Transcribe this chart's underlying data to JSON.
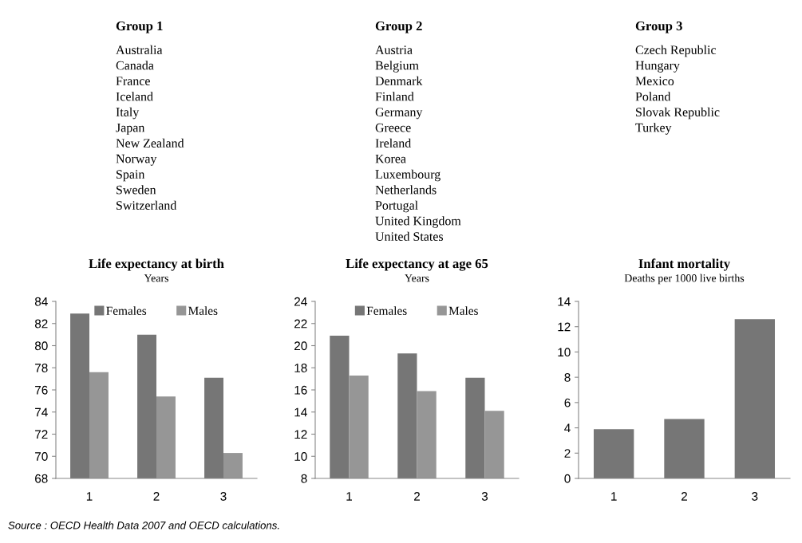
{
  "chart_data": [
    {
      "type": "other",
      "title": "Group 1",
      "annotations": [
        "Australia",
        "Canada",
        "France",
        "Iceland",
        "Italy",
        "Japan",
        "New Zealand",
        "Norway",
        "Spain",
        "Sweden",
        "Switzerland"
      ]
    },
    {
      "type": "other",
      "title": "Group 2",
      "annotations": [
        "Austria",
        "Belgium",
        "Denmark",
        "Finland",
        "Germany",
        "Greece",
        "Ireland",
        "Korea",
        "Luxembourg",
        "Netherlands",
        "Portugal",
        "United Kingdom",
        "United States"
      ]
    },
    {
      "type": "other",
      "title": "Group 3",
      "annotations": [
        "Czech Republic",
        "Hungary",
        "Mexico",
        "Poland",
        "Slovak Republic",
        "Turkey"
      ]
    },
    {
      "type": "bar",
      "title": "Life expectancy at birth",
      "subtitle": "Years",
      "categories": [
        "1",
        "2",
        "3"
      ],
      "ylim": [
        68,
        84
      ],
      "yticks": [
        68,
        70,
        72,
        74,
        76,
        78,
        80,
        82,
        84
      ],
      "legend": "top",
      "grid": false,
      "series": [
        {
          "name": "Females",
          "color": "#767676",
          "values": [
            82.9,
            81.0,
            77.1
          ]
        },
        {
          "name": "Males",
          "color": "#969696",
          "values": [
            77.6,
            75.4,
            70.3
          ]
        }
      ]
    },
    {
      "type": "bar",
      "title": "Life expectancy at age 65",
      "subtitle": "Years",
      "categories": [
        "1",
        "2",
        "3"
      ],
      "ylim": [
        8,
        24
      ],
      "yticks": [
        8,
        10,
        12,
        14,
        16,
        18,
        20,
        22,
        24
      ],
      "legend": "top",
      "grid": false,
      "series": [
        {
          "name": "Females",
          "color": "#767676",
          "values": [
            20.9,
            19.3,
            17.1
          ]
        },
        {
          "name": "Males",
          "color": "#969696",
          "values": [
            17.3,
            15.9,
            14.1
          ]
        }
      ]
    },
    {
      "type": "bar",
      "title": "Infant mortality",
      "subtitle": "Deaths per 1000 live births",
      "categories": [
        "1",
        "2",
        "3"
      ],
      "ylim": [
        0,
        14
      ],
      "yticks": [
        0,
        2,
        4,
        6,
        8,
        10,
        12,
        14
      ],
      "grid": false,
      "series": [
        {
          "color": "#767676",
          "values": [
            3.9,
            4.7,
            12.6
          ]
        }
      ],
      "annotations": [
        "Source : OECD Health Data 2007 and OECD calculations."
      ]
    }
  ]
}
